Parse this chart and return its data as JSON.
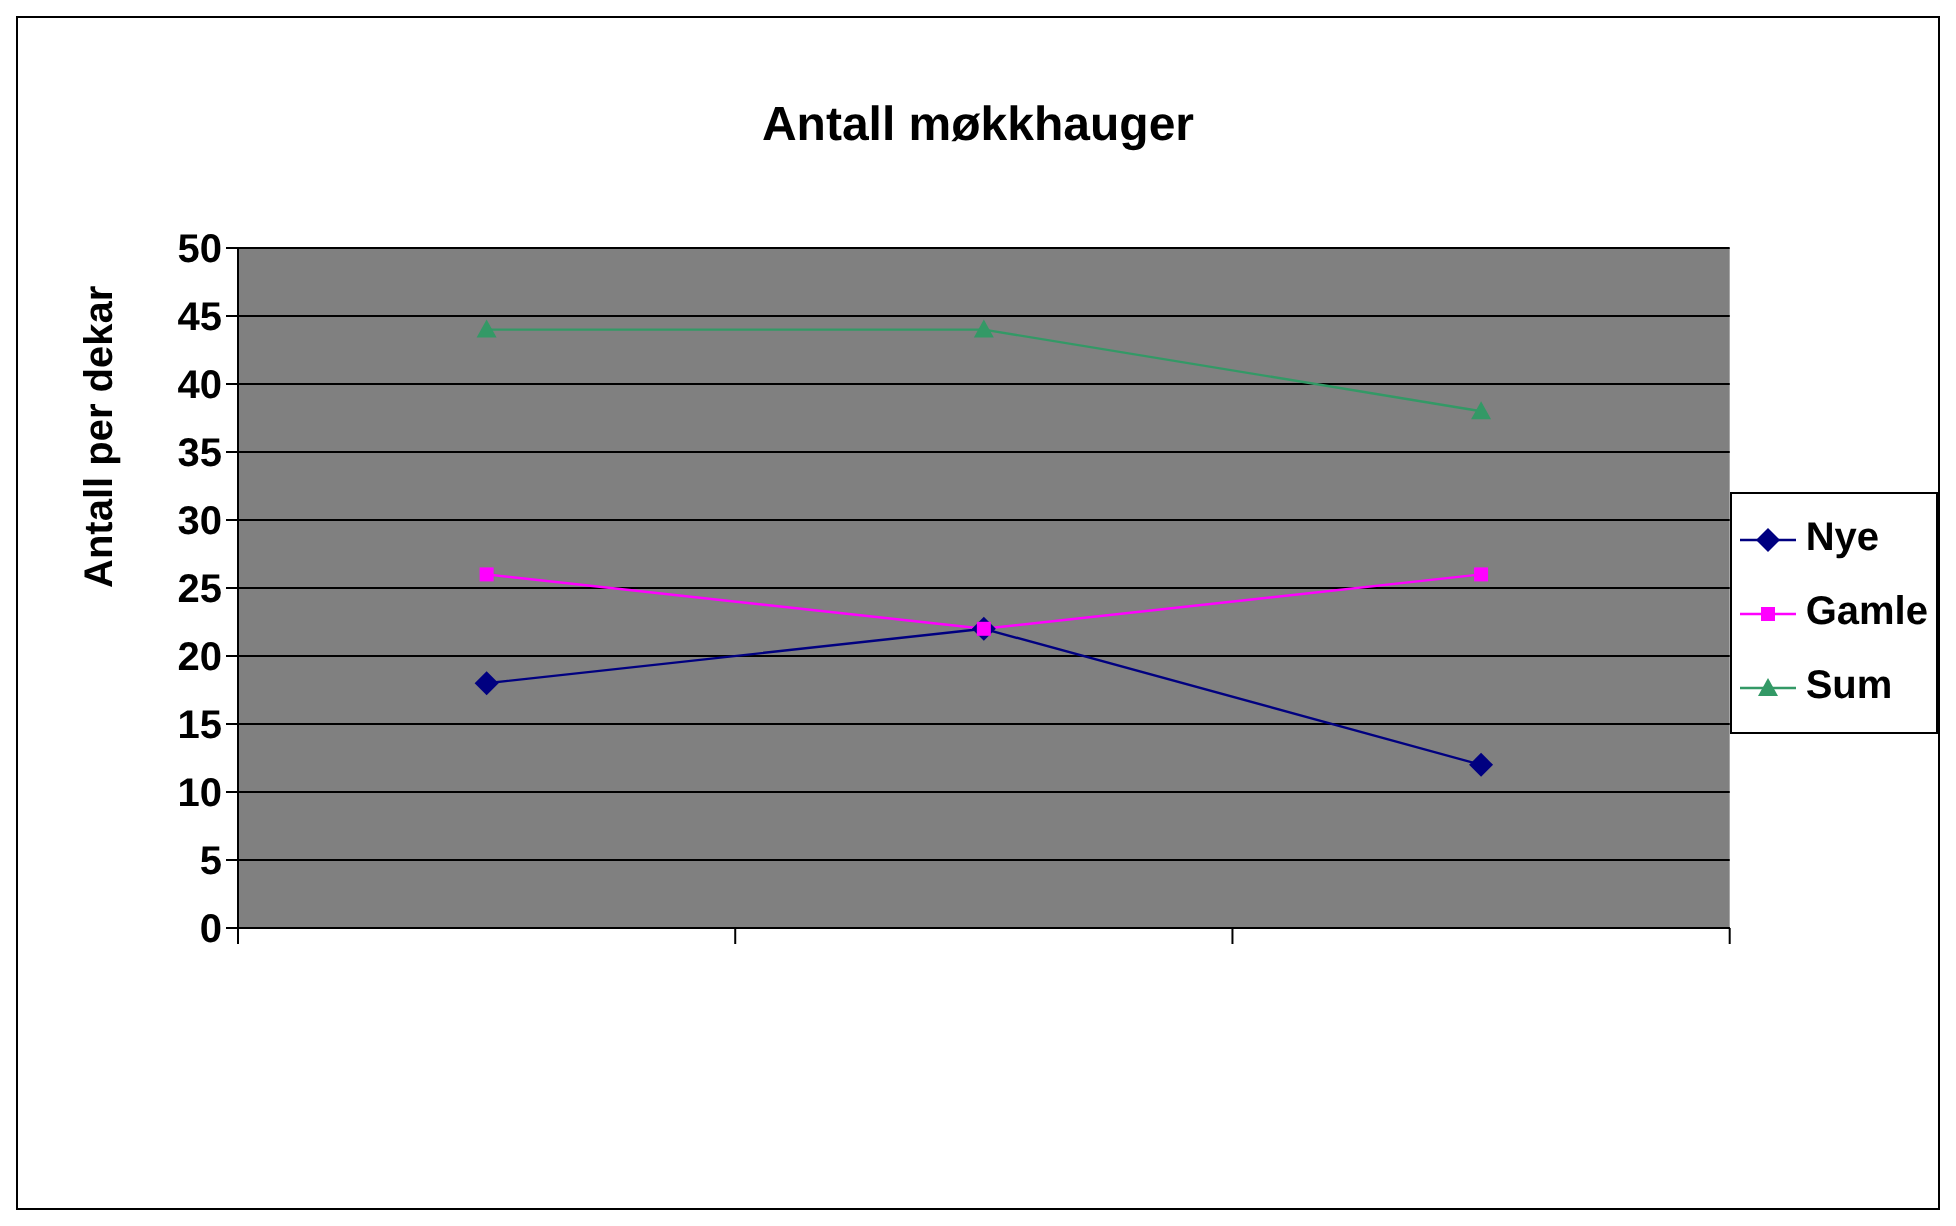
{
  "chart_data": {
    "type": "line",
    "title": "Antall møkkhauger",
    "ylabel": "Antall per dekar",
    "categories": [
      null,
      null,
      null
    ],
    "series": [
      {
        "name": "Nye",
        "color": "#000080",
        "values": [
          18,
          22,
          12
        ],
        "marker": "diamond"
      },
      {
        "name": "Gamle",
        "color": "#ff00ff",
        "values": [
          26,
          22,
          26
        ],
        "marker": "square"
      },
      {
        "name": "Sum",
        "color": "#339966",
        "values": [
          44,
          44,
          38
        ],
        "marker": "triangle"
      }
    ],
    "ylim": [
      0,
      50
    ],
    "yticks": [
      0,
      5,
      10,
      15,
      20,
      25,
      30,
      35,
      40,
      45,
      50
    ],
    "grid": "y",
    "legend": "right"
  }
}
